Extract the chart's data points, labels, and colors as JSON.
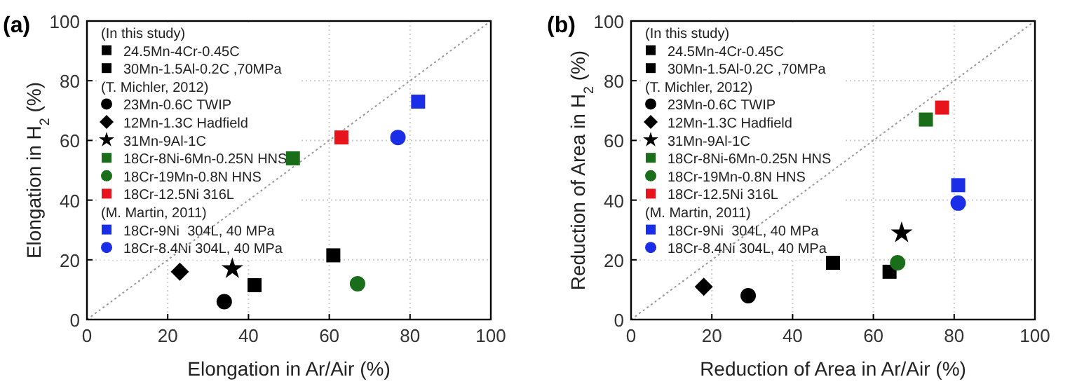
{
  "chart_data": [
    {
      "type": "scatter",
      "title": "(a)",
      "xlabel": "Elongation in Ar/Air (%)",
      "ylabel": "Elongation in H$_{2}$ (%)",
      "xlim": [
        0,
        100
      ],
      "ylim": [
        0,
        100
      ],
      "xticks": [
        0,
        20,
        40,
        60,
        80,
        100
      ],
      "yticks": [
        0,
        20,
        40,
        60,
        80,
        100
      ],
      "grid": true,
      "legend": "top left",
      "annotations": [
        "(In this study)",
        "(T. Michler, 2012)",
        "(M. Martin, 2011)"
      ],
      "series": [
        {
          "type": "line",
          "x": [
            0,
            100
          ],
          "values": [
            0,
            100
          ],
          "color": "#999999",
          "line_style": "dotted"
        },
        {
          "name": "24.5Mn-4Cr-0.45C",
          "x": [
            61
          ],
          "values": [
            21.5
          ],
          "color": "#000000",
          "marker": "square"
        },
        {
          "name": "30Mn-1.5Al-0.2C ,70MPa",
          "x": [
            41.5
          ],
          "values": [
            11.5
          ],
          "color": "#000000",
          "marker": "square"
        },
        {
          "name": "23Mn-0.6C TWIP",
          "x": [
            34
          ],
          "values": [
            6
          ],
          "color": "#000000",
          "marker": "circle"
        },
        {
          "name": "12Mn-1.3C Hadfield",
          "x": [
            23
          ],
          "values": [
            16
          ],
          "color": "#000000",
          "marker": "diamond"
        },
        {
          "name": "31Mn-9Al-1C",
          "x": [
            36
          ],
          "values": [
            17
          ],
          "color": "#000000",
          "marker": "star"
        },
        {
          "name": "18Cr-8Ni-6Mn-0.25N HNS",
          "x": [
            51
          ],
          "values": [
            54
          ],
          "color": "#1a6e1a",
          "marker": "square"
        },
        {
          "name": "18Cr-19Mn-0.8N HNS",
          "x": [
            67
          ],
          "values": [
            12
          ],
          "color": "#1a6e1a",
          "marker": "circle"
        },
        {
          "name": "18Cr-12.5Ni 316L",
          "x": [
            63
          ],
          "values": [
            61
          ],
          "color": "#e8141c",
          "marker": "square"
        },
        {
          "name": "18Cr-9Ni  304L, 40 MPa",
          "x": [
            82
          ],
          "values": [
            73
          ],
          "color": "#1a2ee8",
          "marker": "square"
        },
        {
          "name": "18Cr-8.4Ni 304L, 40 MPa",
          "x": [
            77
          ],
          "values": [
            61
          ],
          "color": "#1a2ee8",
          "marker": "circle"
        }
      ]
    },
    {
      "type": "scatter",
      "title": "(b)",
      "xlabel": "Reduction of Area in Ar/Air (%)",
      "ylabel": "Reduction of Area in H$_{2}$ (%)",
      "xlim": [
        0,
        100
      ],
      "ylim": [
        0,
        100
      ],
      "xticks": [
        0,
        20,
        40,
        60,
        80,
        100
      ],
      "yticks": [
        0,
        20,
        40,
        60,
        80,
        100
      ],
      "grid": true,
      "legend": "top left",
      "annotations": [
        "(In this study)",
        "(T. Michler, 2012)",
        "(M. Martin, 2011)"
      ],
      "series": [
        {
          "type": "line",
          "x": [
            0,
            100
          ],
          "values": [
            0,
            100
          ],
          "color": "#999999",
          "line_style": "dotted"
        },
        {
          "name": "24.5Mn-4Cr-0.45C",
          "x": [
            50
          ],
          "values": [
            19
          ],
          "color": "#000000",
          "marker": "square"
        },
        {
          "name": "30Mn-1.5Al-0.2C ,70MPa",
          "x": [
            64
          ],
          "values": [
            16
          ],
          "color": "#000000",
          "marker": "square"
        },
        {
          "name": "23Mn-0.6C TWIP",
          "x": [
            29
          ],
          "values": [
            8
          ],
          "color": "#000000",
          "marker": "circle"
        },
        {
          "name": "12Mn-1.3C Hadfield",
          "x": [
            18
          ],
          "values": [
            11
          ],
          "color": "#000000",
          "marker": "diamond"
        },
        {
          "name": "31Mn-9Al-1C",
          "x": [
            67
          ],
          "values": [
            29
          ],
          "color": "#000000",
          "marker": "star"
        },
        {
          "name": "18Cr-8Ni-6Mn-0.25N HNS",
          "x": [
            73
          ],
          "values": [
            67
          ],
          "color": "#1a6e1a",
          "marker": "square"
        },
        {
          "name": "18Cr-19Mn-0.8N HNS",
          "x": [
            66
          ],
          "values": [
            19
          ],
          "color": "#1a6e1a",
          "marker": "circle"
        },
        {
          "name": "18Cr-12.5Ni 316L",
          "x": [
            77
          ],
          "values": [
            71
          ],
          "color": "#e8141c",
          "marker": "square"
        },
        {
          "name": "18Cr-9Ni  304L, 40 MPa",
          "x": [
            81
          ],
          "values": [
            45
          ],
          "color": "#1a2ee8",
          "marker": "square"
        },
        {
          "name": "18Cr-8.4Ni 304L, 40 MPa",
          "x": [
            81
          ],
          "values": [
            39
          ],
          "color": "#1a2ee8",
          "marker": "circle"
        }
      ]
    }
  ]
}
